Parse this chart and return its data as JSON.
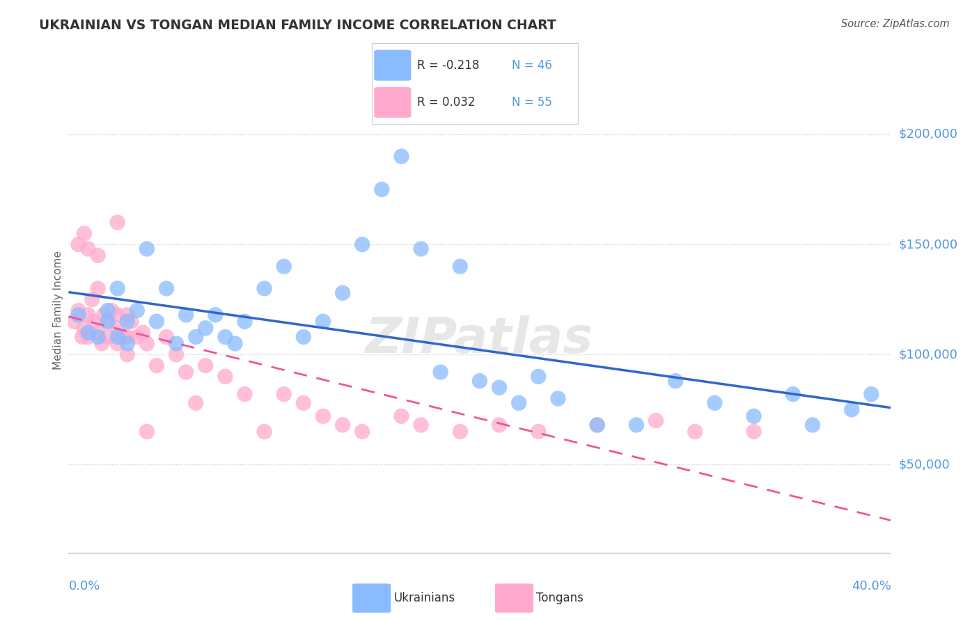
{
  "title": "UKRAINIAN VS TONGAN MEDIAN FAMILY INCOME CORRELATION CHART",
  "source": "Source: ZipAtlas.com",
  "ylabel": "Median Family Income",
  "ytick_labels": [
    "$50,000",
    "$100,000",
    "$150,000",
    "$200,000"
  ],
  "ytick_values": [
    50000,
    100000,
    150000,
    200000
  ],
  "ylim": [
    10000,
    230000
  ],
  "xlim": [
    0.0,
    0.42
  ],
  "blue_color": "#88bbff",
  "pink_color": "#ffaacc",
  "blue_line_color": "#3366cc",
  "pink_line_color": "#ee5599",
  "title_color": "#333333",
  "axis_label_color": "#5599dd",
  "blue_scatter_x": [
    0.005,
    0.01,
    0.015,
    0.02,
    0.02,
    0.025,
    0.025,
    0.03,
    0.03,
    0.035,
    0.04,
    0.045,
    0.05,
    0.055,
    0.06,
    0.065,
    0.07,
    0.075,
    0.08,
    0.085,
    0.09,
    0.1,
    0.11,
    0.12,
    0.13,
    0.14,
    0.15,
    0.16,
    0.17,
    0.18,
    0.19,
    0.2,
    0.21,
    0.22,
    0.23,
    0.24,
    0.25,
    0.27,
    0.29,
    0.31,
    0.33,
    0.35,
    0.37,
    0.38,
    0.4,
    0.41
  ],
  "blue_scatter_y": [
    118000,
    110000,
    108000,
    120000,
    115000,
    130000,
    108000,
    115000,
    105000,
    120000,
    148000,
    115000,
    130000,
    105000,
    118000,
    108000,
    112000,
    118000,
    108000,
    105000,
    115000,
    130000,
    140000,
    108000,
    115000,
    128000,
    150000,
    175000,
    190000,
    148000,
    92000,
    140000,
    88000,
    85000,
    78000,
    90000,
    80000,
    68000,
    68000,
    88000,
    78000,
    72000,
    82000,
    68000,
    75000,
    82000
  ],
  "pink_scatter_x": [
    0.003,
    0.005,
    0.007,
    0.008,
    0.01,
    0.01,
    0.012,
    0.013,
    0.015,
    0.015,
    0.017,
    0.018,
    0.02,
    0.02,
    0.022,
    0.025,
    0.025,
    0.025,
    0.028,
    0.03,
    0.03,
    0.03,
    0.032,
    0.035,
    0.038,
    0.04,
    0.04,
    0.045,
    0.05,
    0.055,
    0.06,
    0.065,
    0.07,
    0.08,
    0.09,
    0.1,
    0.11,
    0.12,
    0.13,
    0.14,
    0.15,
    0.17,
    0.18,
    0.2,
    0.22,
    0.24,
    0.27,
    0.3,
    0.32,
    0.35,
    0.005,
    0.008,
    0.01,
    0.015,
    0.025
  ],
  "pink_scatter_y": [
    115000,
    120000,
    108000,
    112000,
    118000,
    108000,
    125000,
    115000,
    130000,
    110000,
    105000,
    118000,
    115000,
    108000,
    120000,
    112000,
    105000,
    118000,
    108000,
    118000,
    108000,
    100000,
    115000,
    108000,
    110000,
    65000,
    105000,
    95000,
    108000,
    100000,
    92000,
    78000,
    95000,
    90000,
    82000,
    65000,
    82000,
    78000,
    72000,
    68000,
    65000,
    72000,
    68000,
    65000,
    68000,
    65000,
    68000,
    70000,
    65000,
    65000,
    150000,
    155000,
    148000,
    145000,
    160000
  ]
}
